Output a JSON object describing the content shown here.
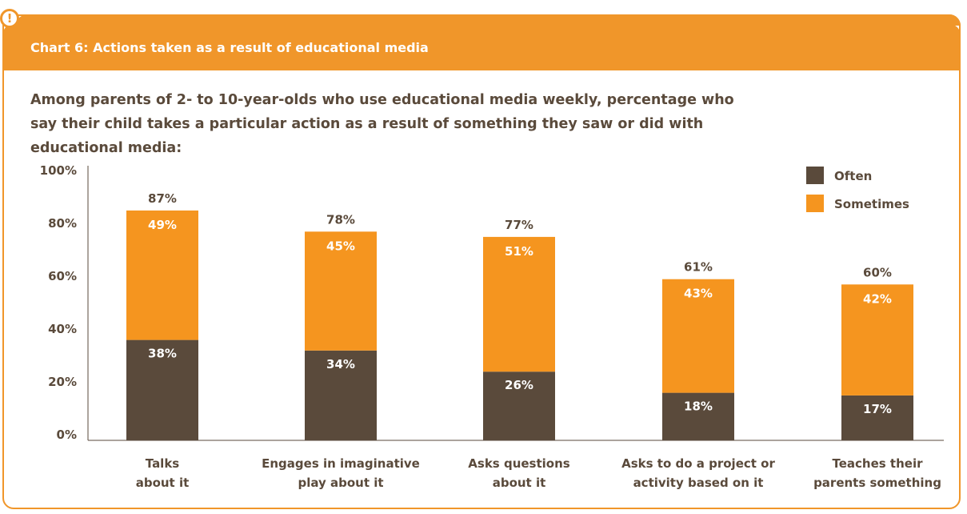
{
  "title": "Chart 6: Actions taken as a result of educational media",
  "subtitle": "Among parents of 2- to 10-year-olds who use educational media weekly, percentage who say their child takes a particular action as a result of something they saw or did with educational media:",
  "badge": "!",
  "colors": {
    "accent": "#f0962a",
    "often": "#5a4a3b",
    "sometimes": "#f5951f"
  },
  "chart_data": {
    "type": "bar",
    "stacked": true,
    "categories": [
      [
        "Talks",
        "about it"
      ],
      [
        "Engages in imaginative",
        "play about it"
      ],
      [
        "Asks questions",
        "about it"
      ],
      [
        "Asks to do a project or",
        "activity based on it"
      ],
      [
        "Teaches their",
        "parents something"
      ]
    ],
    "series": [
      {
        "name": "Often",
        "values": [
          38,
          34,
          26,
          18,
          17
        ]
      },
      {
        "name": "Sometimes",
        "values": [
          49,
          45,
          51,
          43,
          42
        ]
      }
    ],
    "totals": [
      "87%",
      "78%",
      "77%",
      "61%",
      "60%"
    ],
    "yticks": [
      "0%",
      "20%",
      "40%",
      "60%",
      "80%",
      "100%"
    ],
    "ylim": [
      0,
      100
    ],
    "legend": "top-right"
  }
}
